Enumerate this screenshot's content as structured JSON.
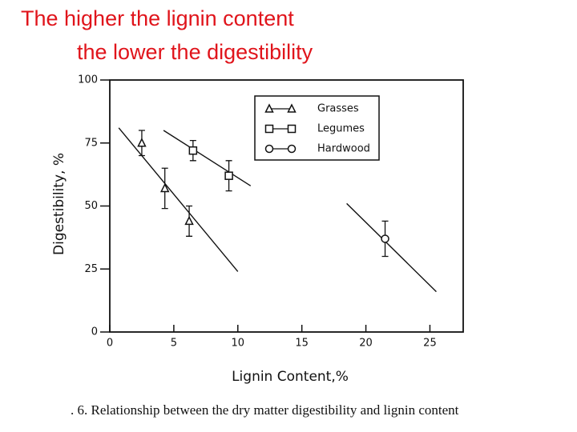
{
  "title": [
    "The higher the lignin content",
    "the lower the digestibility"
  ],
  "chart_data": {
    "type": "scatter",
    "xlabel": "Lignin Content,%",
    "ylabel": "Digestibility, %",
    "caption": ". 6.  Relationship between the dry matter digestibility and lignin content",
    "xlim": [
      0,
      27.6
    ],
    "ylim": [
      0,
      100
    ],
    "xticks": [
      0,
      5,
      10,
      15,
      20,
      25
    ],
    "yticks": [
      0,
      25,
      50,
      75,
      100
    ],
    "series": [
      {
        "name": "Grasses",
        "marker": "triangle",
        "color": "#111111",
        "x": [
          2.5,
          4.3,
          6.2
        ],
        "values": [
          75,
          57,
          44
        ],
        "errors": [
          5,
          8,
          6
        ],
        "fit": {
          "x": [
            0.7,
            10
          ],
          "y": [
            81,
            24
          ]
        }
      },
      {
        "name": "Legumes",
        "marker": "square",
        "color": "#111111",
        "x": [
          6.5,
          9.3
        ],
        "values": [
          72,
          62
        ],
        "errors": [
          4,
          6
        ],
        "fit": {
          "x": [
            4.2,
            11
          ],
          "y": [
            80,
            58
          ]
        }
      },
      {
        "name": "Hardwood",
        "marker": "circle",
        "color": "#111111",
        "x": [
          21.5
        ],
        "values": [
          37
        ],
        "errors": [
          7
        ],
        "fit": {
          "x": [
            18.5,
            25.5
          ],
          "y": [
            51,
            16
          ]
        }
      }
    ]
  }
}
